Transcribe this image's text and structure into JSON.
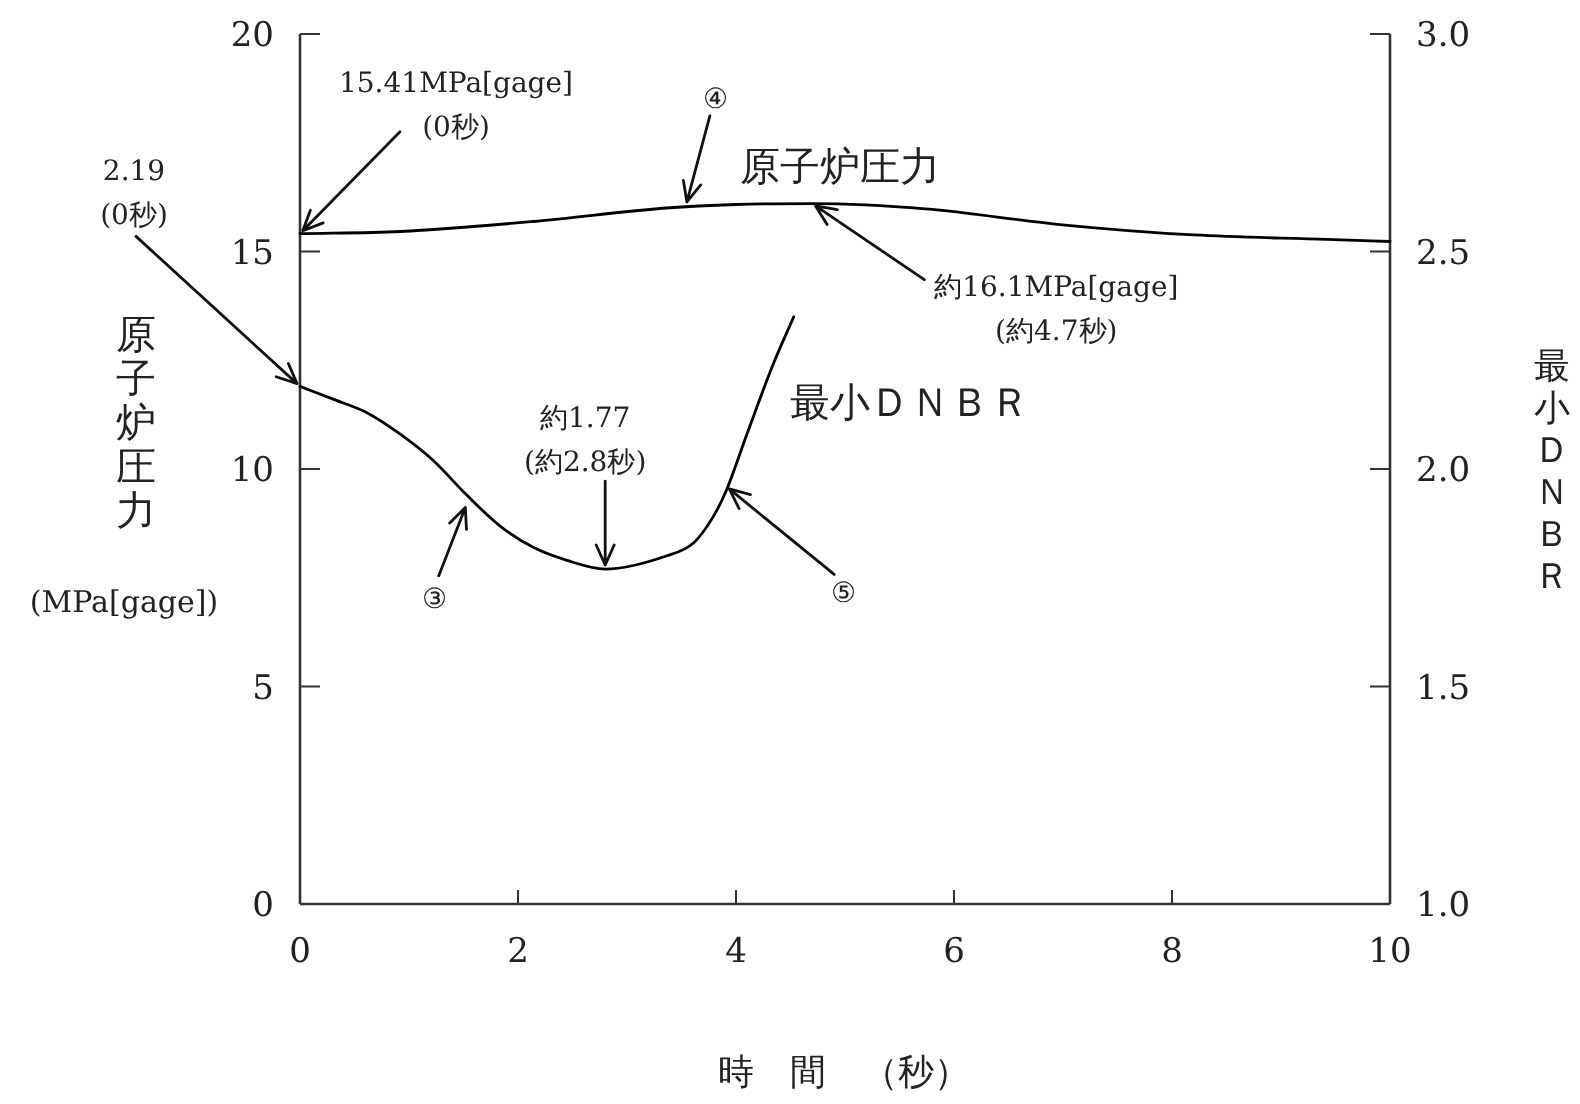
{
  "chart_data": {
    "type": "line",
    "xlabel": "時　間　（秒）",
    "ylabel": "原子炉圧力\n(MPa[gage])",
    "y2label": "最小ＤＮＢＲ",
    "xlim": [
      0,
      10
    ],
    "xticks": [
      0,
      2,
      4,
      6,
      8,
      10
    ],
    "ylim": [
      0,
      20
    ],
    "yticks": [
      0,
      5,
      10,
      15,
      20
    ],
    "y2lim": [
      1,
      3
    ],
    "y2ticks": [
      {
        "value": 1,
        "label": "1.0"
      },
      {
        "value": 1.5,
        "label": "1.5"
      },
      {
        "value": 2,
        "label": "2.0"
      },
      {
        "value": 2.5,
        "label": "2.5"
      },
      {
        "value": 3,
        "label": "3.0"
      }
    ],
    "grid": false,
    "legend": false,
    "marker": "none",
    "line_style": "solid",
    "series": [
      {
        "name": "原子炉圧力",
        "color": "#000000",
        "x": [
          0,
          0.92,
          2.14,
          3.36,
          4.0,
          4.7,
          5.74,
          6.97,
          8.2,
          9.42,
          10
        ],
        "values": [
          15.41,
          15.46,
          15.69,
          16.0,
          16.08,
          16.1,
          15.98,
          15.62,
          15.38,
          15.28,
          15.23
        ]
      },
      {
        "name": "最小ＤＮＢＲ",
        "color": "#000000",
        "axis": "y2",
        "x": [
          0,
          0.31,
          0.61,
          0.92,
          1.22,
          1.53,
          1.83,
          2.14,
          2.45,
          2.8,
          3.36,
          3.61,
          3.79,
          3.91,
          4.1,
          4.34,
          4.53
        ],
        "values": [
          2.19,
          2.16,
          2.13,
          2.08,
          2.02,
          1.94,
          1.87,
          1.82,
          1.79,
          1.77,
          1.8,
          1.83,
          1.89,
          1.95,
          2.08,
          2.24,
          2.35
        ]
      }
    ],
    "annotations": [
      {
        "text": "15.41MPa[gage]\n(0秒)",
        "x": 0,
        "y": 15.41
      },
      {
        "text": "2.19\n(0秒)",
        "x": 0,
        "y": 11.9
      },
      {
        "text": "④",
        "x": 3.54,
        "y": 16.05
      },
      {
        "text": "約16.1MPa[gage]\n(約4.7秒)",
        "x": 4.7,
        "y": 16.1
      },
      {
        "text": "約1.77\n(約2.8秒)",
        "x": 2.8,
        "y": 7.7
      },
      {
        "text": "③",
        "x": 1.53,
        "y": 9.2
      },
      {
        "text": "⑤",
        "x": 3.91,
        "y": 9.6
      }
    ]
  }
}
